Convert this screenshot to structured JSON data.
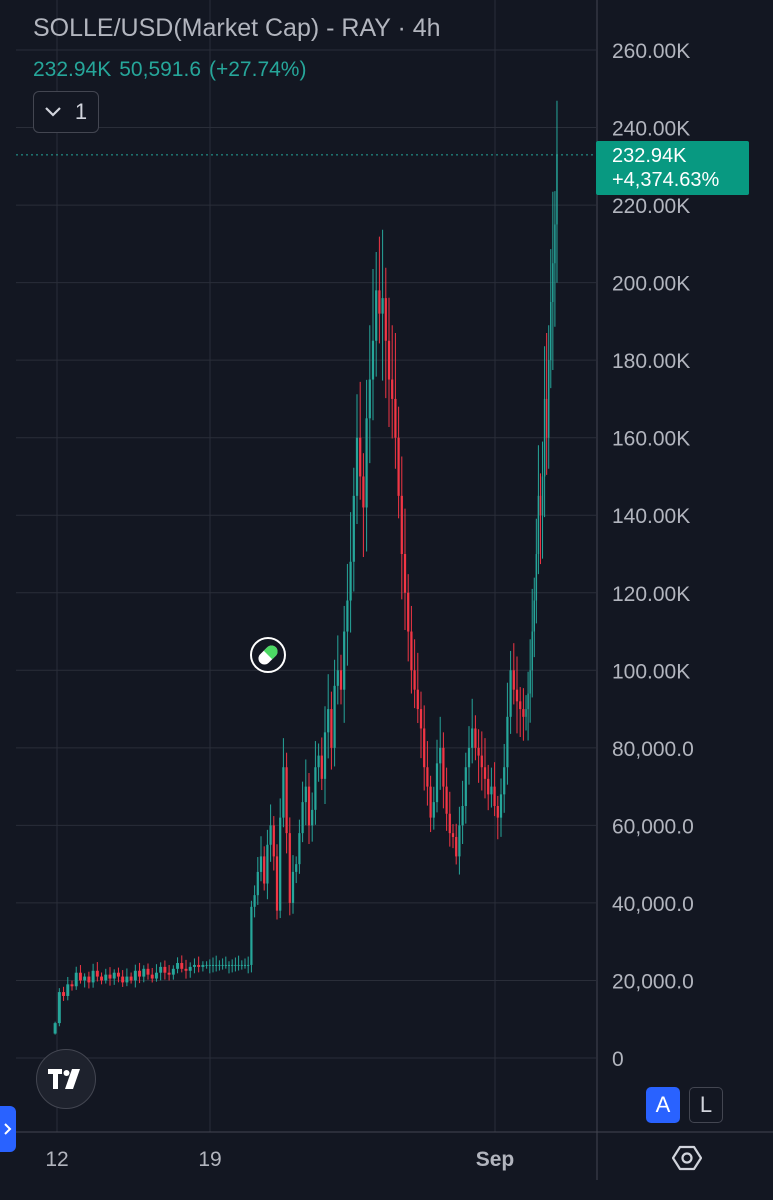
{
  "header": {
    "title": "SOLLE/USD(Market Cap) - RAY · 4h",
    "last_value": "232.94K",
    "change_abs": "50,591.6",
    "change_pct": "(+27.74%)",
    "collapse_count": "1"
  },
  "price_label": {
    "value": "232.94K",
    "change": "+4,374.63%"
  },
  "colors": {
    "background": "#131722",
    "up": "#26a69a",
    "down": "#f23645",
    "grid": "#2a2e39",
    "text": "#b2b5be",
    "accent": "#2962ff",
    "price_tag": "#089981"
  },
  "chart_data": {
    "type": "candlestick",
    "title": "SOLLE/USD(Market Cap) - RAY · 4h",
    "y_ticks": [
      "0",
      "20,000.0",
      "40,000.0",
      "60,000.0",
      "80,000.0",
      "100.00K",
      "120.00K",
      "140.00K",
      "160.00K",
      "180.00K",
      "200.00K",
      "220.00K",
      "240.00K",
      "260.00K"
    ],
    "x_ticks": [
      "12",
      "19",
      "Sep"
    ],
    "ylim": [
      0,
      260000
    ],
    "last_price": 232940,
    "grid": true,
    "series": [
      {
        "phase": "12",
        "values": [
          9000,
          17000,
          16000,
          19000,
          18500,
          22000,
          20000,
          21000,
          19500,
          22500,
          21000,
          20000,
          21500,
          20500,
          22000,
          21000,
          19500,
          21000,
          20000,
          22500,
          21000,
          23000,
          21500,
          20500,
          22000,
          23500,
          22000,
          21500,
          23000,
          24500,
          23000,
          22500,
          23500,
          24000,
          23500,
          24000
        ]
      },
      {
        "phase": "19",
        "values": [
          24000,
          24000,
          24000,
          24000,
          24000,
          24000,
          24000,
          24000,
          24000,
          24000,
          24000,
          24000,
          24000,
          24000,
          39000,
          42000,
          48000,
          52000,
          45000,
          55000,
          60000,
          52000,
          38000,
          62000,
          75000,
          58000,
          40000,
          48000,
          50000,
          58000,
          66000,
          70000,
          60000,
          64000,
          75000,
          78000,
          72000,
          84000,
          90000,
          80000,
          96000,
          100000,
          95000,
          110000,
          118000,
          128000,
          145000,
          160000,
          150000,
          142000,
          165000,
          175000,
          185000,
          198000,
          192000,
          196000,
          185000,
          175000,
          170000,
          160000,
          145000,
          130000,
          120000,
          110000,
          100000,
          95000,
          90000,
          85000,
          75000,
          70000,
          62000,
          66000,
          76000,
          80000,
          70000,
          63000,
          58000,
          57000,
          52000,
          60000,
          65000,
          75000,
          80000,
          85000,
          80000,
          78000,
          75000,
          72000,
          68000,
          70000,
          65000,
          62000,
          68000,
          75000,
          88000,
          100000,
          95000,
          92000,
          90000,
          88000
        ]
      },
      {
        "phase": "Sep",
        "values": [
          90000,
          94000,
          100000,
          110000,
          118000,
          130000,
          145000,
          140000,
          150000,
          170000,
          160000,
          180000,
          195000,
          205000,
          215000,
          232940
        ]
      }
    ]
  }
}
